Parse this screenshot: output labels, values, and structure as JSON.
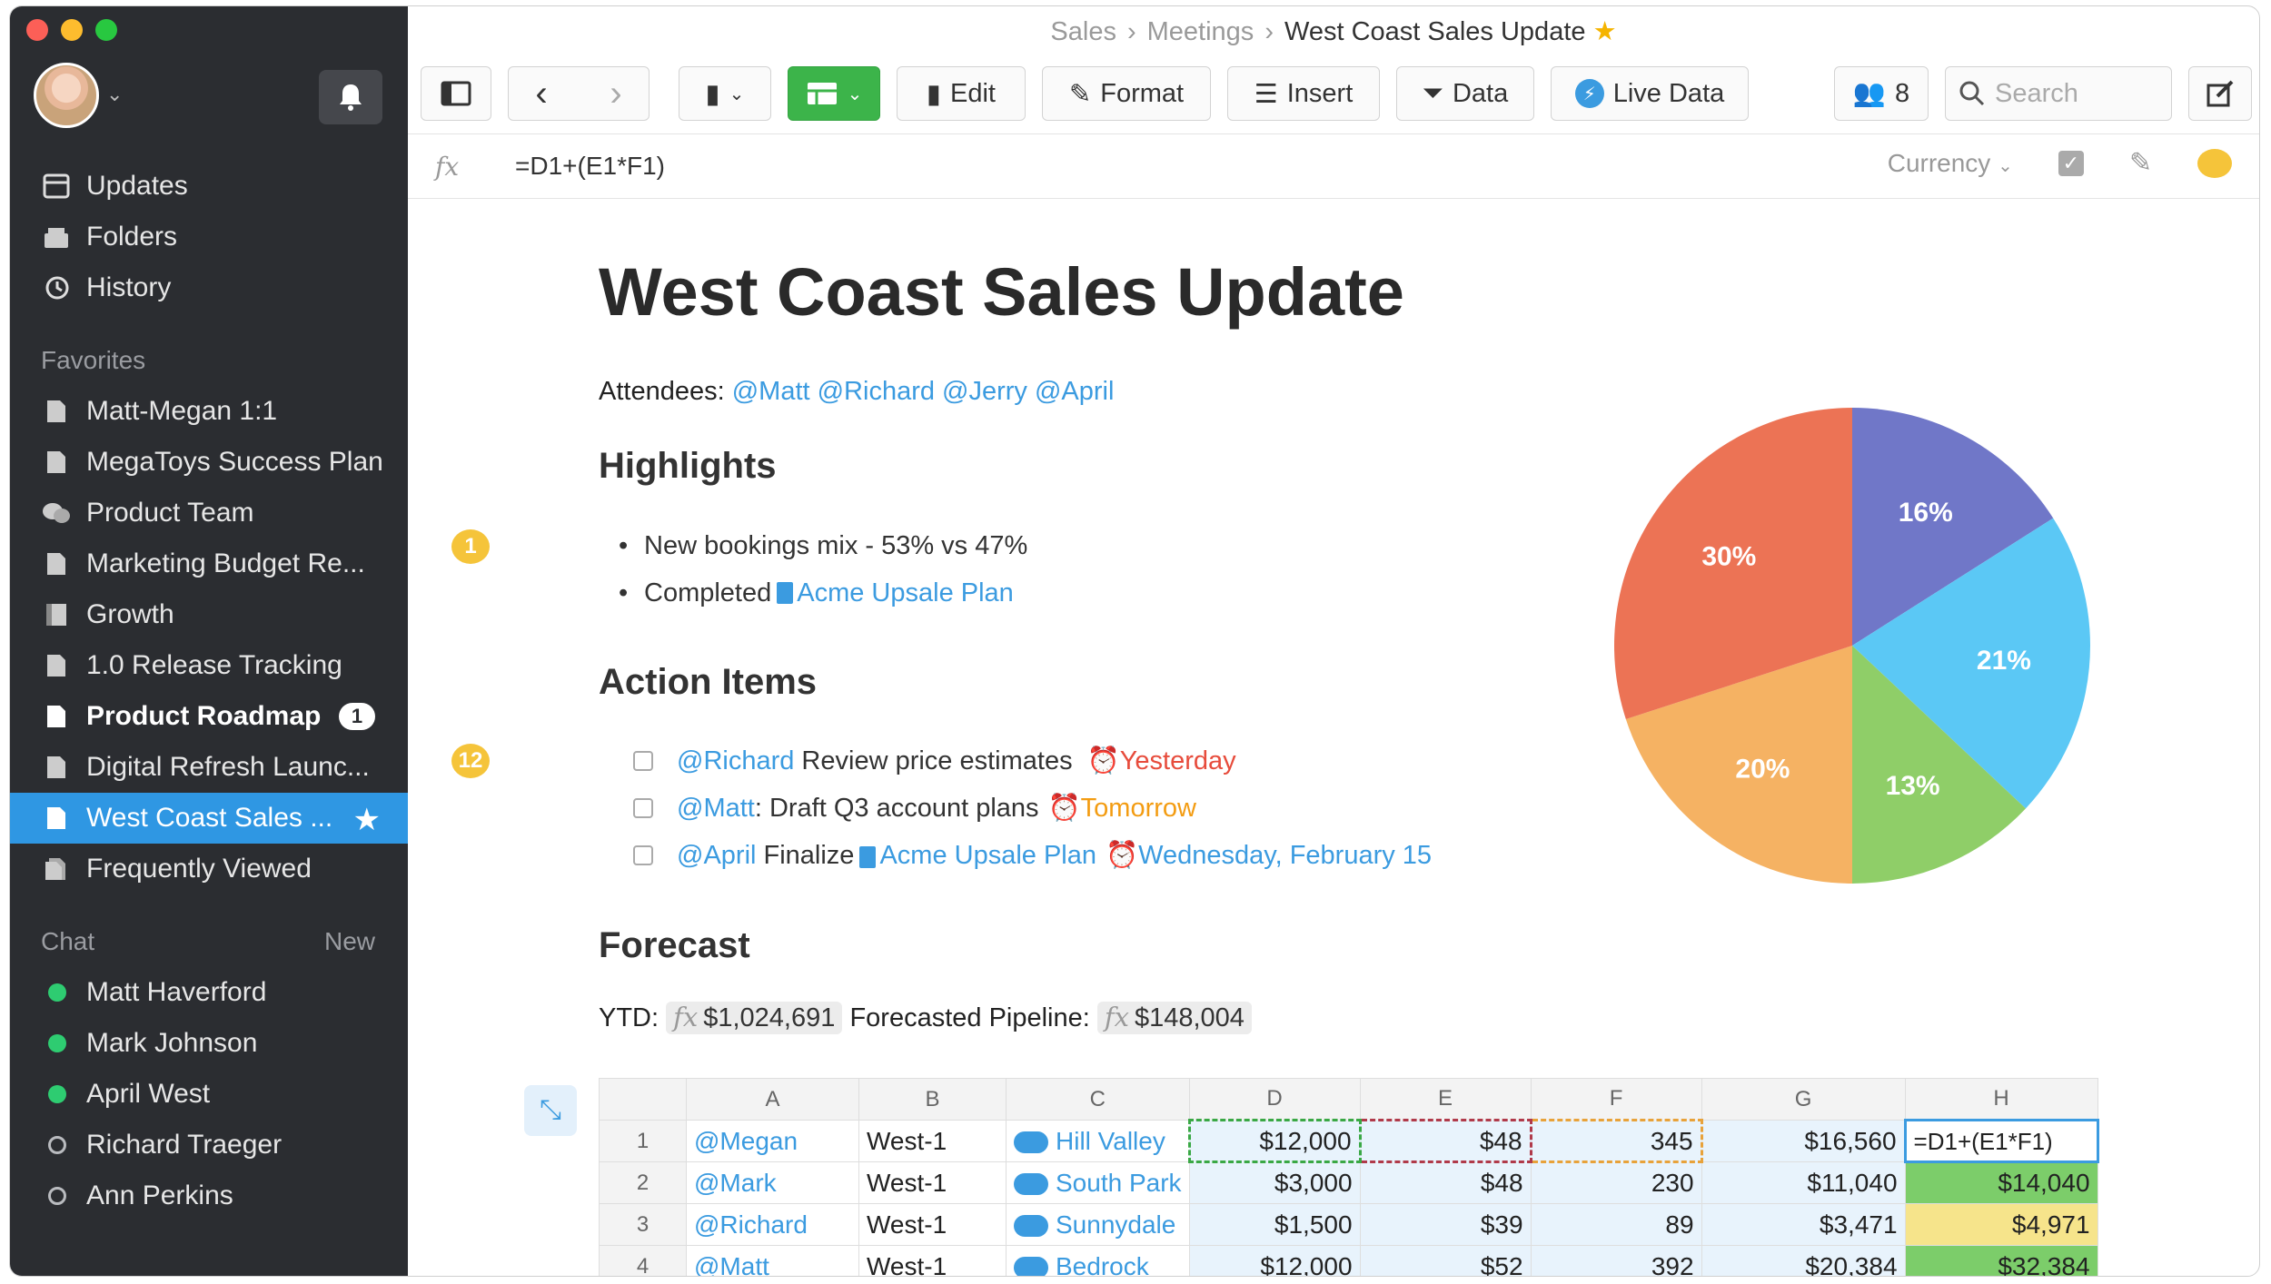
{
  "sidebar": {
    "nav": [
      {
        "label": "Updates",
        "icon": "updates-icon"
      },
      {
        "label": "Folders",
        "icon": "folders-icon"
      },
      {
        "label": "History",
        "icon": "history-icon"
      }
    ],
    "favorites_header": "Favorites",
    "favorites": [
      {
        "label": "Matt-Megan 1:1"
      },
      {
        "label": "MegaToys Success Plan"
      },
      {
        "label": "Product Team"
      },
      {
        "label": "Marketing Budget Re..."
      },
      {
        "label": "Growth"
      },
      {
        "label": "1.0 Release Tracking"
      },
      {
        "label": "Product Roadmap",
        "badge": "1"
      },
      {
        "label": "Digital Refresh Launc..."
      },
      {
        "label": "West Coast Sales ..."
      },
      {
        "label": "Frequently Viewed"
      }
    ],
    "chat_header": "Chat",
    "chat_new": "New",
    "chat": [
      {
        "label": "Matt Haverford",
        "online": true
      },
      {
        "label": "Mark Johnson",
        "online": true
      },
      {
        "label": "April West",
        "online": true
      },
      {
        "label": "Richard Traeger",
        "online": false
      },
      {
        "label": "Ann Perkins",
        "online": false
      }
    ]
  },
  "breadcrumb": {
    "a": "Sales",
    "b": "Meetings",
    "current": "West Coast Sales Update"
  },
  "toolbar": {
    "edit": "Edit",
    "format": "Format",
    "insert": "Insert",
    "data": "Data",
    "live_data": "Live Data",
    "members": "8",
    "search_placeholder": "Search"
  },
  "formula_bar": {
    "fx": "fx",
    "formula": "=D1+(E1*F1)",
    "format": "Currency"
  },
  "doc": {
    "title": "West Coast Sales Update",
    "attendees_label": "Attendees:",
    "attendees": "@Matt @Richard @Jerry @April",
    "highlights_heading": "Highlights",
    "highlights_badge": "1",
    "bullet1": "New bookings mix - 53% vs 47%",
    "bullet2_prefix": "Completed",
    "bullet2_link": "Acme Upsale Plan",
    "actions_heading": "Action Items",
    "actions_badge": "12",
    "a1_mention": "@Richard",
    "a1_text": " Review price estimates",
    "a1_due": "Yesterday",
    "a2_mention": "@Matt",
    "a2_text": ": Draft Q3 account plans",
    "a2_due": "Tomorrow",
    "a3_mention": "@April",
    "a3_text": " Finalize",
    "a3_link": "Acme Upsale Plan",
    "a3_due": "Wednesday, February 15",
    "forecast_heading": "Forecast",
    "ytd_label": "YTD:",
    "ytd_value": "$1,024,691",
    "pipeline_label": "Forecasted Pipeline:",
    "pipeline_value": "$148,004"
  },
  "chart_data": {
    "type": "pie",
    "slices": [
      {
        "label": "16%",
        "value": 16,
        "color": "#7077c8"
      },
      {
        "label": "21%",
        "value": 21,
        "color": "#5bc8f5"
      },
      {
        "label": "13%",
        "value": 13,
        "color": "#8fce68"
      },
      {
        "label": "20%",
        "value": 20,
        "color": "#f5b263"
      },
      {
        "label": "30%",
        "value": 30,
        "color": "#ec7355"
      }
    ]
  },
  "table": {
    "columns": [
      "A",
      "B",
      "C",
      "D",
      "E",
      "F",
      "G",
      "H"
    ],
    "rows": [
      {
        "n": "1",
        "a": "@Megan",
        "b": "West-1",
        "c": "Hill Valley",
        "d": "$12,000",
        "e": "$48",
        "f": "345",
        "g": "$16,560",
        "h": "=D1+(E1*F1)"
      },
      {
        "n": "2",
        "a": "@Mark",
        "b": "West-1",
        "c": "South Park",
        "d": "$3,000",
        "e": "$48",
        "f": "230",
        "g": "$11,040",
        "h": "$14,040"
      },
      {
        "n": "3",
        "a": "@Richard",
        "b": "West-1",
        "c": "Sunnydale",
        "d": "$1,500",
        "e": "$39",
        "f": "89",
        "g": "$3,471",
        "h": "$4,971"
      },
      {
        "n": "4",
        "a": "@Matt",
        "b": "West-1",
        "c": "Bedrock",
        "d": "$12,000",
        "e": "$52",
        "f": "392",
        "g": "$20,384",
        "h": "$32,384"
      }
    ]
  }
}
